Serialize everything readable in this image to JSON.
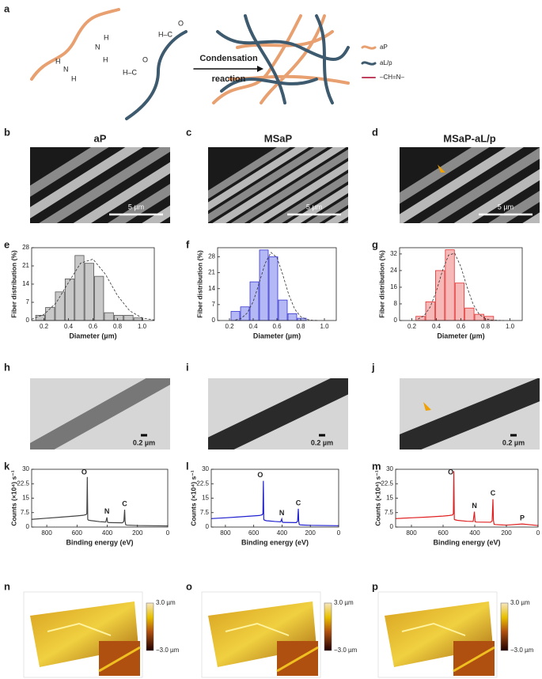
{
  "panel_labels": [
    "a",
    "b",
    "c",
    "d",
    "e",
    "f",
    "g",
    "h",
    "i",
    "j",
    "k",
    "l",
    "m",
    "n",
    "o",
    "p"
  ],
  "scheme": {
    "atoms": [
      "N",
      "H",
      "H",
      "N",
      "H",
      "H",
      "H–C",
      "O",
      "H–C",
      "O"
    ],
    "arrow_text": [
      "Condensation",
      "reaction"
    ],
    "legend": [
      "aP",
      "aL/p",
      "–CH=N–"
    ]
  },
  "sem": [
    {
      "title": "aP",
      "scale": "5 µm"
    },
    {
      "title": "MSaP",
      "scale": "5 µm"
    },
    {
      "title": "MSaP-aL/p",
      "scale": "5 µm"
    }
  ],
  "tem": [
    {
      "scale": "0.2 µm"
    },
    {
      "scale": "0.2 µm"
    },
    {
      "scale": "0.2 µm"
    }
  ],
  "afm": [
    {
      "max": "3.0 µm",
      "min": "−3.0 µm"
    },
    {
      "max": "3.0 µm",
      "min": "−3.0 µm"
    },
    {
      "max": "3.0 µm",
      "min": "−3.0 µm"
    }
  ],
  "chart_data": [
    {
      "type": "histogram",
      "xlabel": "Diameter (µm)",
      "ylabel": "Fiber distribution (%)",
      "bins": [
        0.13,
        0.21,
        0.29,
        0.37,
        0.45,
        0.53,
        0.61,
        0.69,
        0.77,
        0.85,
        0.93,
        1.01
      ],
      "values": [
        2,
        5,
        11,
        16,
        25,
        22,
        17,
        3,
        2,
        2,
        1
      ],
      "color": "#555555",
      "fill": "#c8c8c8",
      "xlim": [
        0.1,
        1.1
      ],
      "ylim": [
        0,
        28
      ],
      "xticks": [
        0.2,
        0.4,
        0.6,
        0.8,
        {
          "value": 1,
          "label": "1.0"
        }
      ],
      "yticks": [
        0,
        7,
        14,
        21,
        28
      ],
      "fit": {
        "x": [
          0.1,
          0.2,
          0.3,
          0.4,
          0.5,
          0.6,
          0.7,
          0.8,
          0.9,
          1.0,
          1.1
        ],
        "y": [
          0.5,
          2.3,
          6.8,
          14.6,
          22.1,
          23.6,
          17.9,
          9.6,
          3.7,
          1.0,
          0.2
        ]
      }
    },
    {
      "type": "histogram",
      "xlabel": "Diameter (µm)",
      "ylabel": "Fiber distribution (%)",
      "bins": [
        0.21,
        0.29,
        0.37,
        0.45,
        0.53,
        0.61,
        0.69,
        0.77,
        0.85
      ],
      "values": [
        4,
        6,
        17,
        31,
        28,
        9,
        3,
        1
      ],
      "color": "#3535d0",
      "fill": "#b4b8f5",
      "xlim": [
        0.1,
        1.1
      ],
      "ylim": [
        0,
        32
      ],
      "xticks": [
        0.2,
        0.4,
        0.6,
        0.8,
        {
          "value": 1,
          "label": "1.0"
        }
      ],
      "yticks": [
        0,
        7,
        14,
        21,
        28
      ],
      "fit": {
        "x": [
          0.25,
          0.3,
          0.35,
          0.4,
          0.45,
          0.5,
          0.55,
          0.6,
          0.65,
          0.7,
          0.75,
          0.8,
          0.85,
          0.9,
          0.95
        ],
        "y": [
          0.2,
          1.0,
          3.3,
          8.3,
          16.4,
          25.1,
          29.9,
          27.7,
          20,
          11.3,
          5,
          1.7,
          0.5,
          0.1,
          0
        ]
      }
    },
    {
      "type": "histogram",
      "xlabel": "Diameter (µm)",
      "ylabel": "Fiber distribution (%)",
      "bins": [
        0.23,
        0.31,
        0.39,
        0.47,
        0.55,
        0.63,
        0.71,
        0.79,
        0.87
      ],
      "values": [
        2,
        9,
        24,
        34,
        18,
        6,
        3,
        2
      ],
      "color": "#e03030",
      "fill": "#f7b8b8",
      "xlim": [
        0.1,
        1.1
      ],
      "ylim": [
        0,
        35
      ],
      "xticks": [
        0.2,
        0.4,
        0.6,
        0.8,
        {
          "value": 1,
          "label": "1.0"
        }
      ],
      "yticks": [
        0,
        8,
        16,
        24,
        32
      ],
      "fit": {
        "x": [
          0.25,
          0.3,
          0.35,
          0.4,
          0.45,
          0.5,
          0.55,
          0.6,
          0.65,
          0.7,
          0.75,
          0.8,
          0.85,
          0.9,
          0.95
        ],
        "y": [
          0.7,
          2.3,
          6.5,
          14.2,
          24,
          31.5,
          32.3,
          25.8,
          16.1,
          7.8,
          2.9,
          0.9,
          0.2,
          0.1,
          0
        ]
      }
    },
    {
      "type": "line",
      "xlabel": "Binding energy (eV)",
      "ylabel": "Counts (×10⁴) s⁻¹",
      "color": "#444444",
      "x": [
        900,
        800,
        700,
        600,
        560,
        540,
        535,
        532,
        529,
        525,
        510,
        450,
        410,
        402,
        398,
        390,
        300,
        290,
        285,
        282,
        278,
        270,
        200,
        100,
        0
      ],
      "values": [
        4,
        4.6,
        5.2,
        5.8,
        6.1,
        6.5,
        7,
        26,
        4,
        3.6,
        3.4,
        2.8,
        2.6,
        5,
        2.5,
        2.3,
        2.2,
        3,
        9,
        3,
        1.2,
        1,
        0.8,
        0.7,
        0.6
      ],
      "xlim": [
        900,
        0
      ],
      "ylim": [
        0,
        30
      ],
      "xticks": [
        800,
        600,
        400,
        200,
        0
      ],
      "yticks": [
        0,
        7.5,
        15,
        22.5,
        30
      ],
      "peak_labels": [
        "O",
        "N",
        "C"
      ]
    },
    {
      "type": "line",
      "xlabel": "Binding energy (eV)",
      "ylabel": "Counts (×10⁴) s⁻¹",
      "color": "#1f1fd0",
      "x": [
        900,
        800,
        700,
        600,
        560,
        540,
        535,
        532,
        529,
        525,
        510,
        450,
        410,
        402,
        398,
        390,
        300,
        290,
        285,
        282,
        278,
        270,
        200,
        100,
        0
      ],
      "values": [
        4.4,
        4.8,
        5.3,
        5.8,
        6,
        6.4,
        7,
        24,
        4,
        3.6,
        3.3,
        2.9,
        2.7,
        4.2,
        2.6,
        2.4,
        2.3,
        3,
        9.5,
        3,
        1.3,
        1.1,
        0.9,
        0.8,
        0.7
      ],
      "xlim": [
        900,
        0
      ],
      "ylim": [
        0,
        30
      ],
      "xticks": [
        800,
        600,
        400,
        200,
        0
      ],
      "yticks": [
        0,
        7.5,
        15,
        22.5,
        30
      ],
      "peak_labels": [
        "O",
        "N",
        "C"
      ]
    },
    {
      "type": "line",
      "xlabel": "Binding energy (eV)",
      "ylabel": "Counts (×10⁴) s⁻¹",
      "color": "#e02020",
      "x": [
        900,
        800,
        700,
        600,
        560,
        540,
        535,
        532,
        529,
        525,
        510,
        450,
        410,
        402,
        398,
        390,
        300,
        290,
        285,
        282,
        278,
        270,
        200,
        100,
        0
      ],
      "values": [
        4.4,
        4.8,
        5.2,
        5.7,
        6,
        6.3,
        7,
        29,
        4,
        3.8,
        3.5,
        3,
        2.9,
        8,
        2.8,
        2.6,
        2.5,
        3.2,
        14.5,
        3.5,
        1.5,
        1.3,
        1,
        1.6,
        0.8
      ],
      "xlim": [
        900,
        0
      ],
      "ylim": [
        0,
        30
      ],
      "xticks": [
        800,
        600,
        400,
        200,
        0
      ],
      "yticks": [
        0,
        7.5,
        15,
        22.5,
        30
      ],
      "peak_labels": [
        "O",
        "N",
        "C",
        "P"
      ]
    }
  ]
}
